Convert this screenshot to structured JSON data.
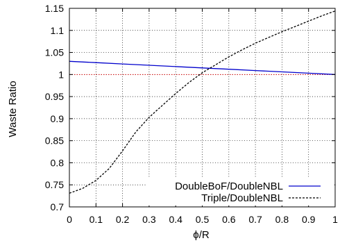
{
  "chart_data": {
    "type": "line",
    "xlabel": "ϕ/R",
    "ylabel": "Waste Ratio",
    "xlim": [
      0,
      1
    ],
    "ylim": [
      0.7,
      1.15
    ],
    "x_ticks": [
      0,
      0.1,
      0.2,
      0.3,
      0.4,
      0.5,
      0.6,
      0.7,
      0.8,
      0.9,
      1
    ],
    "x_tick_labels": [
      "0",
      "0.1",
      "0.2",
      "0.3",
      "0.4",
      "0.5",
      "0.6",
      "0.7",
      "0.8",
      "0.9",
      "1"
    ],
    "y_ticks": [
      0.7,
      0.75,
      0.8,
      0.85,
      0.9,
      0.95,
      1.0,
      1.05,
      1.1,
      1.15
    ],
    "y_tick_labels": [
      "0.7",
      "0.75",
      "0.8",
      "0.85",
      "0.9",
      "0.95",
      "1",
      "1.05",
      "1.1",
      "1.15"
    ],
    "grid": true,
    "legend_position": "bottom-right",
    "reference_line": {
      "y": 1.0,
      "color": "#cc0000",
      "style": "dotted"
    },
    "series": [
      {
        "name": "DoubleBoF/DoubleNBL",
        "color": "#0000cc",
        "style": "solid",
        "x": [
          0,
          0.1,
          0.2,
          0.3,
          0.4,
          0.5,
          0.6,
          0.7,
          0.8,
          0.9,
          1.0
        ],
        "y": [
          1.03,
          1.027,
          1.024,
          1.021,
          1.018,
          1.015,
          1.012,
          1.009,
          1.006,
          1.003,
          1.0
        ]
      },
      {
        "name": "Triple/DoubleNBL",
        "color": "#000000",
        "style": "dashed",
        "x": [
          0,
          0.05,
          0.1,
          0.15,
          0.2,
          0.25,
          0.3,
          0.35,
          0.4,
          0.45,
          0.5,
          0.55,
          0.6,
          0.65,
          0.7,
          0.75,
          0.8,
          0.85,
          0.9,
          0.95,
          1.0
        ],
        "y": [
          0.731,
          0.742,
          0.76,
          0.787,
          0.827,
          0.87,
          0.903,
          0.93,
          0.957,
          0.982,
          1.004,
          1.022,
          1.04,
          1.056,
          1.071,
          1.084,
          1.097,
          1.109,
          1.121,
          1.133,
          1.144
        ]
      }
    ]
  }
}
